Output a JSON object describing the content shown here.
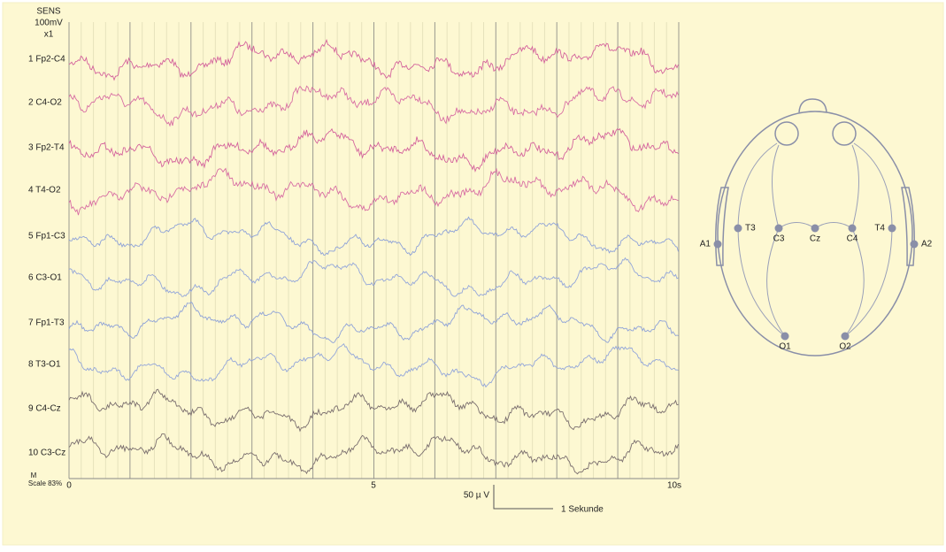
{
  "sensitivity": {
    "label": "SENS",
    "value": "100mV",
    "gain": "x1"
  },
  "channels": [
    "1 Fp2-C4",
    "2 C4-O2",
    "3 Fp2-T4",
    "4  T4-O2",
    "5 Fp1-C3",
    "6  C3-O1",
    "7 Fp1-T3",
    "8   T3-O1",
    "9  C4-Cz",
    "10 C3-Cz"
  ],
  "montage": {
    "label": "M",
    "scale": "Scale 83%"
  },
  "time_axis": [
    "0",
    "5",
    "10s"
  ],
  "scale_bar": {
    "amplitude": "50 µ V",
    "duration": "1 Sekunde"
  },
  "electrodes": [
    "A1",
    "T3",
    "C3",
    "Cz",
    "C4",
    "T4",
    "A2",
    "O1",
    "O2"
  ]
}
